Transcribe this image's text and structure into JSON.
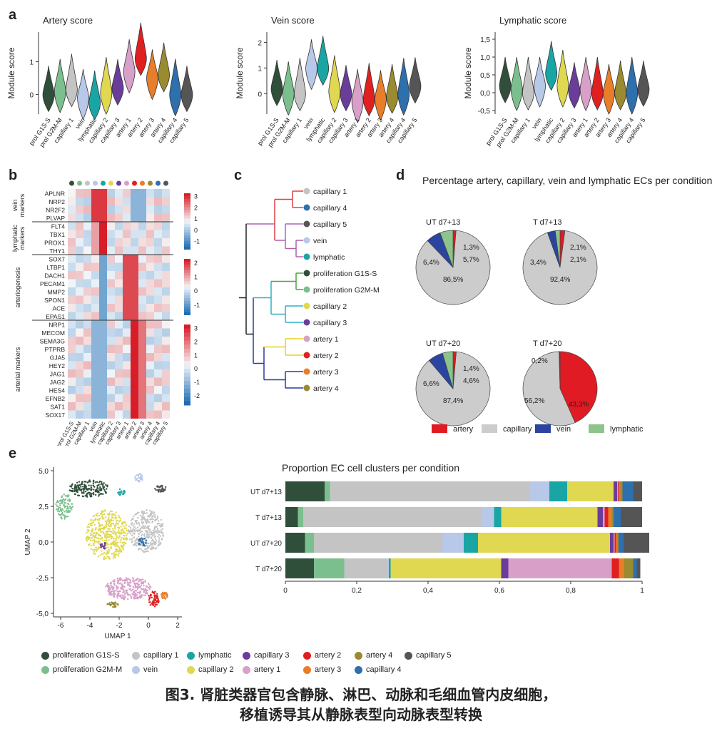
{
  "panel_labels": {
    "a": "a",
    "b": "b",
    "c": "c",
    "d": "d",
    "e": "e"
  },
  "colors": {
    "prol_g1s": "#2f4f3a",
    "prol_g2m": "#7cbf8e",
    "capillary1": "#c4c4c4",
    "vein": "#b8c8e8",
    "lymphatic": "#1aa5a5",
    "capillary2": "#e0d850",
    "capillary3": "#6a3d9a",
    "artery1": "#d8a0c8",
    "artery2": "#e02020",
    "artery3": "#e87d2a",
    "artery4": "#9a8a30",
    "capillary4": "#2e6fae",
    "capillary5": "#555555",
    "artery_red": "#e01b24",
    "vein_blue": "#2a44a0",
    "lymph_green": "#8dc48b"
  },
  "panel_a": {
    "ylabel": "Module score",
    "categories": [
      "prol G1S-S",
      "prol G2M-M",
      "capillary 1",
      "vein",
      "lymphatic",
      "capillary 2",
      "capillary 3",
      "artery 1",
      "artery 2",
      "artery 3",
      "artery 4",
      "capillary 4",
      "capillary 5"
    ],
    "categories_ordered_3": [
      "prol G1S-S",
      "prol G2M-M",
      "capillary 1",
      "vein",
      "lymphatic",
      "capillary 2",
      "capillary 3",
      "artery 1",
      "artery 2",
      "artery 3",
      "artery 4",
      "capillary 4",
      "capillary 5"
    ],
    "charts": [
      {
        "title": "Artery score",
        "yticks": [
          "0",
          "1"
        ],
        "ylim": [
          -0.6,
          1.9
        ],
        "order": [
          "prol G1S-S",
          "prol G2M-M",
          "capillary 1",
          "vein",
          "lymphatic",
          "capillary 2",
          "capillary 3",
          "artery 1",
          "artery 2",
          "artery 3",
          "artery 4",
          "capillary 4",
          "capillary 5"
        ],
        "medians": [
          0.0,
          0.1,
          0.15,
          -0.1,
          -0.25,
          0.05,
          0.2,
          0.7,
          1.1,
          0.5,
          0.6,
          0.0,
          0.0
        ]
      },
      {
        "title": "Vein score",
        "yticks": [
          "0",
          "1",
          "2"
        ],
        "ylim": [
          -0.8,
          2.4
        ],
        "order": [
          "prol G1S-S",
          "prol G2M-M",
          "capillary 1",
          "vein",
          "lymphatic",
          "capillary 2",
          "capillary 3",
          "artery 1",
          "artery 2",
          "artery 3",
          "artery 4",
          "capillary 4",
          "capillary 5"
        ],
        "medians": [
          0.2,
          0.0,
          0.0,
          1.0,
          1.0,
          0.1,
          0.0,
          -0.3,
          -0.2,
          -0.2,
          -0.1,
          0.0,
          0.3
        ]
      },
      {
        "title": "Lymphatic score",
        "yticks": [
          "1,5",
          "1,0",
          "0,5",
          "0,0",
          "-0,5"
        ],
        "ylim": [
          -0.6,
          1.7
        ],
        "order": [
          "prol G1S-S",
          "prol G2M-M",
          "capillary 1",
          "vein",
          "lymphatic",
          "capillary 2",
          "capillary 3",
          "artery 1",
          "artery 2",
          "artery 3",
          "artery 4",
          "capillary 4",
          "capillary 5"
        ],
        "medians": [
          0.2,
          0.1,
          0.0,
          0.2,
          0.55,
          0.2,
          0.05,
          0.1,
          0.0,
          0.0,
          0.0,
          0.0,
          0.1
        ]
      }
    ]
  },
  "panel_b": {
    "genes": [
      "APLNR",
      "NRP2",
      "NR2F2",
      "PLVAP",
      "FLT4",
      "TBX1",
      "PROX1",
      "THY1",
      "SOX7",
      "LTBP1",
      "DACH1",
      "PECAM1",
      "MMP2",
      "SPON1",
      "ACE",
      "EPAS1",
      "NRP1",
      "MECOM",
      "SEMA3G",
      "PTPRB",
      "GJA5",
      "HEY2",
      "JAG1",
      "JAG2",
      "HES4",
      "EFNB2",
      "SAT1",
      "SOX17"
    ],
    "group_labels": [
      "vein markers",
      "lymphatic markers",
      "arteriogenesis",
      "arterial markers"
    ],
    "colorbar_ticks": [
      [
        "3",
        "2",
        "1",
        "0",
        "-1"
      ],
      [
        "2",
        "1",
        "0",
        "-1"
      ],
      [
        "3",
        "2",
        "1",
        "0",
        "-1",
        "-2"
      ]
    ],
    "xlabels": [
      "prol G1S-S",
      "prol G2M-M",
      "capillary 1",
      "vein",
      "lymphatic",
      "capillary 2",
      "capillary 3",
      "artery 1",
      "artery 2",
      "artery 3",
      "artery 4",
      "capillary 4",
      "capillary 5"
    ]
  },
  "panel_c": {
    "leaves": [
      "capillary 1",
      "capillary 4",
      "capillary 5",
      "vein",
      "lymphatic",
      "proliferation G1S-S",
      "proliferation G2M-M",
      "capillary 2",
      "capillary 3",
      "artery 1",
      "artery 2",
      "artery 3",
      "artery 4"
    ]
  },
  "panel_d": {
    "title": "Percentage artery, capillary, vein and lymphatic ECs per condition",
    "pies": [
      {
        "label": "UT d7+13",
        "artery": 1.3,
        "capillary": 86.5,
        "vein": 6.4,
        "lymphatic": 5.7,
        "labels": {
          "artery": "1,3%",
          "lymphatic": "5,7%",
          "vein": "6,4%",
          "capillary": "86,5%"
        }
      },
      {
        "label": "T d7+13",
        "artery": 2.1,
        "capillary": 92.4,
        "vein": 3.4,
        "lymphatic": 2.1,
        "labels": {
          "artery": "2,1%",
          "lymphatic": "2,1%",
          "vein": "3,4%",
          "capillary": "92,4%"
        }
      },
      {
        "label": "UT d7+20",
        "artery": 1.4,
        "capillary": 87.4,
        "vein": 6.6,
        "lymphatic": 4.6,
        "labels": {
          "artery": "1,4%",
          "lymphatic": "4,6%",
          "vein": "6,6%",
          "capillary": "87,4%"
        }
      },
      {
        "label": "T d7+20",
        "artery": 43.3,
        "capillary": 56.2,
        "vein": 0.2,
        "lymphatic": 0.2,
        "labels": {
          "artery": "43,3%",
          "lymphatic": "0,2%",
          "vein": "0,2%",
          "capillary": "56,2%"
        }
      }
    ],
    "legend": [
      {
        "key": "artery",
        "label": "artery",
        "color": "#e01b24"
      },
      {
        "key": "capillary",
        "label": "capillary",
        "color": "#cccccc"
      },
      {
        "key": "vein",
        "label": "vein",
        "color": "#2a44a0"
      },
      {
        "key": "lymphatic",
        "label": "lymphatic",
        "color": "#8dc48b"
      }
    ]
  },
  "panel_e_umap": {
    "xlabel": "UMAP 1",
    "ylabel": "UMAP 2",
    "xticks": [
      "-6",
      "-4",
      "-2",
      "0",
      "2"
    ],
    "yticks": [
      "5,0",
      "2,5",
      "0,0",
      "-2,5",
      "-5,0"
    ]
  },
  "chart_data": {
    "type": "bar",
    "title": "Proportion EC cell clusters per condition",
    "categories": [
      "UT d7+13",
      "T d7+13",
      "UT d7+20",
      "T d7+20"
    ],
    "xticks": [
      "0",
      "0,2",
      "0,4",
      "0,6",
      "0,8",
      "1"
    ],
    "xlim": [
      0,
      1
    ],
    "series": [
      {
        "name": "proliferation G1S-S",
        "values": [
          0.11,
          0.035,
          0.055,
          0.08
        ]
      },
      {
        "name": "proliferation G2M-M",
        "values": [
          0.015,
          0.015,
          0.025,
          0.085
        ]
      },
      {
        "name": "capillary 1",
        "values": [
          0.56,
          0.5,
          0.36,
          0.12
        ]
      },
      {
        "name": "vein",
        "values": [
          0.055,
          0.035,
          0.06,
          0.005
        ]
      },
      {
        "name": "lymphatic",
        "values": [
          0.05,
          0.02,
          0.04,
          0.005
        ]
      },
      {
        "name": "capillary 2",
        "values": [
          0.13,
          0.27,
          0.37,
          0.31
        ]
      },
      {
        "name": "capillary 3",
        "values": [
          0.01,
          0.015,
          0.01,
          0.02
        ]
      },
      {
        "name": "artery 1",
        "values": [
          0.003,
          0.005,
          0.003,
          0.29
        ]
      },
      {
        "name": "artery 2",
        "values": [
          0.003,
          0.01,
          0.004,
          0.02
        ]
      },
      {
        "name": "artery 3",
        "values": [
          0.003,
          0.01,
          0.004,
          0.015
        ]
      },
      {
        "name": "artery 4",
        "values": [
          0.006,
          0.005,
          0.003,
          0.025
        ]
      },
      {
        "name": "capillary 4",
        "values": [
          0.03,
          0.02,
          0.015,
          0.01
        ]
      },
      {
        "name": "capillary 5",
        "values": [
          0.025,
          0.06,
          0.1,
          0.01
        ]
      }
    ]
  },
  "legend_e": [
    {
      "label": "proliferation G1S-S",
      "color": "#2f4f3a"
    },
    {
      "label": "capillary 1",
      "color": "#c4c4c4"
    },
    {
      "label": "lymphatic",
      "color": "#1aa5a5"
    },
    {
      "label": "capillary 3",
      "color": "#6a3d9a"
    },
    {
      "label": "artery 2",
      "color": "#e02020"
    },
    {
      "label": "artery 4",
      "color": "#9a8a30"
    },
    {
      "label": "capillary 5",
      "color": "#555555"
    },
    {
      "label": "proliferation G2M-M",
      "color": "#7cbf8e"
    },
    {
      "label": "vein",
      "color": "#b8c8e8"
    },
    {
      "label": "capillary 2",
      "color": "#e0d850"
    },
    {
      "label": "artery 1",
      "color": "#d8a0c8"
    },
    {
      "label": "artery 3",
      "color": "#e87d2a"
    },
    {
      "label": "capillary 4",
      "color": "#2e6fae"
    }
  ],
  "caption": {
    "line1": "图3. 肾脏类器官包含静脉、淋巴、动脉和毛细血管内皮细胞，",
    "line2": "移植诱导其从静脉表型向动脉表型转换"
  }
}
